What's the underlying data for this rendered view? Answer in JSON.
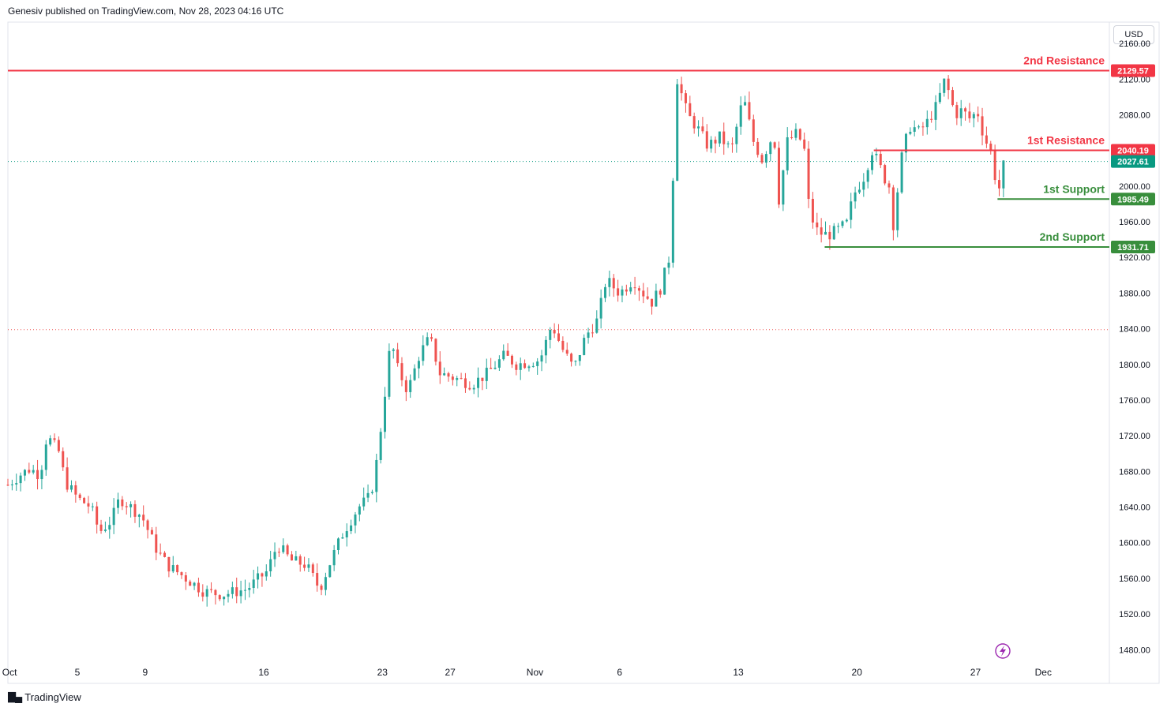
{
  "header": {
    "published": "Genesiv published on TradingView.com, Nov 28, 2023 04:16 UTC"
  },
  "footer": {
    "brand": "TradingView"
  },
  "currency": "USD",
  "colors": {
    "up": "#26a69a",
    "down": "#ef5350",
    "resistance": "#f23645",
    "support": "#388e3c",
    "last_price": "#089981",
    "axis_text": "#131722",
    "border": "#e0e3eb"
  },
  "chart_data": {
    "type": "candlestick",
    "instrument_currency": "USD",
    "y_axis": {
      "position": "right",
      "ticks": [
        1480,
        1520,
        1560,
        1600,
        1640,
        1680,
        1720,
        1760,
        1800,
        1840,
        1880,
        1920,
        1960,
        2000,
        2040,
        2080,
        2120,
        2160
      ],
      "tick_labels": [
        "1480.00",
        "1520.00",
        "1560.00",
        "1600.00",
        "1640.00",
        "1680.00",
        "1720.00",
        "1760.00",
        "1800.00",
        "1840.00",
        "1880.00",
        "1920.00",
        "1960.00",
        "2000.00",
        "",
        "2080.00",
        "2120.00",
        "2160.00"
      ],
      "range": [
        1467,
        2184
      ]
    },
    "x_axis": {
      "labels": [
        {
          "label": "Oct",
          "day": 1
        },
        {
          "label": "5",
          "day": 5
        },
        {
          "label": "9",
          "day": 9
        },
        {
          "label": "16",
          "day": 16
        },
        {
          "label": "23",
          "day": 23
        },
        {
          "label": "27",
          "day": 27
        },
        {
          "label": "Nov",
          "day": 32
        },
        {
          "label": "6",
          "day": 37
        },
        {
          "label": "13",
          "day": 44
        },
        {
          "label": "20",
          "day": 51
        },
        {
          "label": "27",
          "day": 58
        },
        {
          "label": "Dec",
          "day": 62
        }
      ],
      "range_days": [
        0.9,
        65.9
      ]
    },
    "levels": [
      {
        "name": "2nd Resistance",
        "value": 2129.57,
        "label": "2129.57",
        "kind": "resistance",
        "start_day": 0.9
      },
      {
        "name": "1st Resistance",
        "value": 2040.19,
        "label": "2040.19",
        "kind": "resistance",
        "start_day": 52.0
      },
      {
        "name": "1st Support",
        "value": 1985.49,
        "label": "1985.49",
        "kind": "support",
        "start_day": 59.3
      },
      {
        "name": "2nd Support",
        "value": 1931.71,
        "label": "1931.71",
        "kind": "support",
        "start_day": 49.1
      }
    ],
    "last_price": {
      "value": 2027.61,
      "label": "2027.61"
    },
    "reference_line": {
      "value": 1839
    },
    "series": [
      {
        "day": 0.9,
        "price": 1665
      },
      {
        "day": 1.6,
        "price": 1676
      },
      {
        "day": 2.2,
        "price": 1683
      },
      {
        "day": 2.8,
        "price": 1676
      },
      {
        "day": 3.2,
        "price": 1720
      },
      {
        "day": 3.9,
        "price": 1702
      },
      {
        "day": 4.3,
        "price": 1668
      },
      {
        "day": 5.0,
        "price": 1650
      },
      {
        "day": 5.8,
        "price": 1640
      },
      {
        "day": 6.3,
        "price": 1612
      },
      {
        "day": 7.0,
        "price": 1625
      },
      {
        "day": 7.5,
        "price": 1650
      },
      {
        "day": 8.4,
        "price": 1636
      },
      {
        "day": 8.8,
        "price": 1630
      },
      {
        "day": 9.6,
        "price": 1595
      },
      {
        "day": 10.3,
        "price": 1575
      },
      {
        "day": 11.2,
        "price": 1563
      },
      {
        "day": 12.5,
        "price": 1545
      },
      {
        "day": 13.6,
        "price": 1542
      },
      {
        "day": 15.0,
        "price": 1548
      },
      {
        "day": 16.2,
        "price": 1568
      },
      {
        "day": 16.8,
        "price": 1598
      },
      {
        "day": 17.6,
        "price": 1580
      },
      {
        "day": 18.5,
        "price": 1575
      },
      {
        "day": 19.3,
        "price": 1548
      },
      {
        "day": 20.0,
        "price": 1582
      },
      {
        "day": 20.7,
        "price": 1612
      },
      {
        "day": 21.6,
        "price": 1640
      },
      {
        "day": 22.3,
        "price": 1652
      },
      {
        "day": 22.7,
        "price": 1695
      },
      {
        "day": 23.1,
        "price": 1760
      },
      {
        "day": 23.5,
        "price": 1828
      },
      {
        "day": 23.9,
        "price": 1795
      },
      {
        "day": 24.5,
        "price": 1770
      },
      {
        "day": 25.2,
        "price": 1812
      },
      {
        "day": 25.8,
        "price": 1830
      },
      {
        "day": 26.4,
        "price": 1790
      },
      {
        "day": 27.2,
        "price": 1785
      },
      {
        "day": 28.3,
        "price": 1778
      },
      {
        "day": 29.2,
        "price": 1790
      },
      {
        "day": 30.2,
        "price": 1810
      },
      {
        "day": 30.9,
        "price": 1800
      },
      {
        "day": 32.3,
        "price": 1805
      },
      {
        "day": 33.0,
        "price": 1845
      },
      {
        "day": 33.6,
        "price": 1818
      },
      {
        "day": 34.3,
        "price": 1795
      },
      {
        "day": 35.0,
        "price": 1832
      },
      {
        "day": 35.7,
        "price": 1850
      },
      {
        "day": 36.2,
        "price": 1895
      },
      {
        "day": 37.0,
        "price": 1880
      },
      {
        "day": 37.8,
        "price": 1895
      },
      {
        "day": 38.4,
        "price": 1880
      },
      {
        "day": 38.9,
        "price": 1870
      },
      {
        "day": 39.4,
        "price": 1885
      },
      {
        "day": 39.9,
        "price": 1918
      },
      {
        "day": 40.2,
        "price": 2030
      },
      {
        "day": 40.4,
        "price": 2120
      },
      {
        "day": 41.0,
        "price": 2080
      },
      {
        "day": 41.6,
        "price": 2065
      },
      {
        "day": 42.2,
        "price": 2045
      },
      {
        "day": 42.9,
        "price": 2055
      },
      {
        "day": 43.6,
        "price": 2040
      },
      {
        "day": 44.3,
        "price": 2100
      },
      {
        "day": 44.9,
        "price": 2050
      },
      {
        "day": 45.4,
        "price": 2030
      },
      {
        "day": 46.1,
        "price": 2060
      },
      {
        "day": 46.4,
        "price": 1985
      },
      {
        "day": 46.9,
        "price": 2050
      },
      {
        "day": 47.5,
        "price": 2060
      },
      {
        "day": 47.9,
        "price": 2040
      },
      {
        "day": 48.2,
        "price": 1970
      },
      {
        "day": 48.7,
        "price": 1948
      },
      {
        "day": 49.3,
        "price": 1945
      },
      {
        "day": 49.8,
        "price": 1950
      },
      {
        "day": 50.4,
        "price": 1958
      },
      {
        "day": 50.8,
        "price": 1990
      },
      {
        "day": 51.4,
        "price": 2010
      },
      {
        "day": 51.9,
        "price": 2040
      },
      {
        "day": 52.3,
        "price": 2025
      },
      {
        "day": 52.6,
        "price": 2010
      },
      {
        "day": 52.9,
        "price": 2000
      },
      {
        "day": 53.0,
        "price": 1935
      },
      {
        "day": 53.3,
        "price": 1980
      },
      {
        "day": 53.7,
        "price": 2040
      },
      {
        "day": 54.2,
        "price": 2070
      },
      {
        "day": 54.6,
        "price": 2060
      },
      {
        "day": 55.1,
        "price": 2070
      },
      {
        "day": 55.7,
        "price": 2090
      },
      {
        "day": 56.2,
        "price": 2120
      },
      {
        "day": 56.8,
        "price": 2080
      },
      {
        "day": 57.2,
        "price": 2085
      },
      {
        "day": 57.7,
        "price": 2075
      },
      {
        "day": 58.1,
        "price": 2085
      },
      {
        "day": 58.5,
        "price": 2055
      },
      {
        "day": 59.0,
        "price": 2035
      },
      {
        "day": 59.3,
        "price": 1988
      },
      {
        "day": 59.7,
        "price": 2027.61
      }
    ]
  }
}
